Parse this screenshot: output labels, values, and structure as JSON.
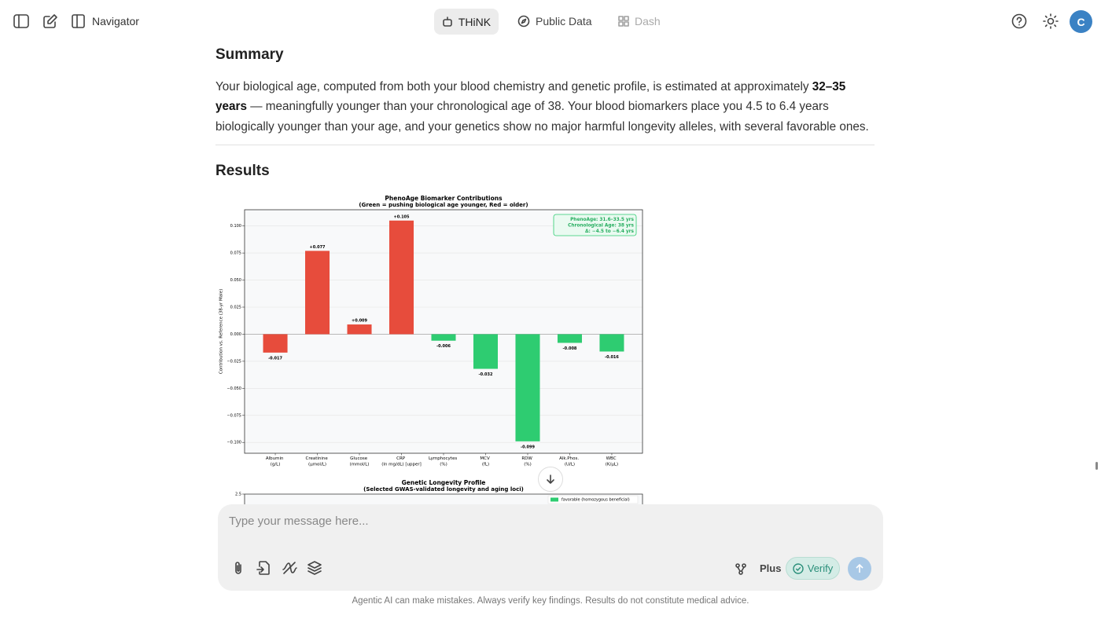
{
  "header": {
    "navigator": "Navigator",
    "tabs": [
      "THiNK",
      "Public Data",
      "Dash"
    ],
    "avatar": "C"
  },
  "summary": {
    "heading": "Summary",
    "text": [
      "Your biological age, computed from both your blood chemistry and genetic profile, is estimated at approximately ",
      "32–35 years",
      " — meaningfully younger than your chronological age of 38. Your blood biomarkers place you 4.5 to 6.4 years biologically younger than your age, and your genetics show no major harmful longevity alleles, with several favorable ones."
    ]
  },
  "results": {
    "heading": "Results"
  },
  "chart_data": [
    {
      "type": "bar",
      "title": "PhenoAge Biomarker Contributions",
      "subtitle": "(Green = pushing biological age younger, Red = older)",
      "ylabel": "Contribution vs. Reference (38-yr Male)",
      "categories": [
        "Albumin\n(g/L)",
        "Creatinine\n(µmol/L)",
        "Glucose\n(mmol/L)",
        "CRP\n(ln mg/dL) [upper]",
        "Lymphocytes\n(%)",
        "MCV\n(fL)",
        "RDW\n(%)",
        "Alk.Phos.\n(U/L)",
        "WBC\n(K/µL)"
      ],
      "values": [
        -0.017,
        0.077,
        0.009,
        0.105,
        -0.006,
        -0.032,
        -0.099,
        -0.008,
        -0.016
      ],
      "value_labels": [
        "-0.017",
        "+0.077",
        "+0.009",
        "+0.105",
        "-0.006",
        "-0.032",
        "-0.099",
        "-0.008",
        "-0.016"
      ],
      "colors": [
        "#e74c3c",
        "#e74c3c",
        "#e74c3c",
        "#e74c3c",
        "#2ecc71",
        "#2ecc71",
        "#2ecc71",
        "#2ecc71",
        "#2ecc71"
      ],
      "ylim": [
        -0.11,
        0.115
      ],
      "yticks": [
        {
          "value": -0.1,
          "label": "−0.100"
        },
        {
          "value": -0.075,
          "label": "−0.075"
        },
        {
          "value": -0.05,
          "label": "−0.050"
        },
        {
          "value": -0.025,
          "label": "−0.025"
        },
        {
          "value": 0,
          "label": "0.000"
        },
        {
          "value": 0.025,
          "label": "0.025"
        },
        {
          "value": 0.05,
          "label": "0.050"
        },
        {
          "value": 0.075,
          "label": "0.075"
        },
        {
          "value": 0.1,
          "label": "0.100"
        }
      ],
      "grid": true,
      "annotation": [
        "PhenoAge: 31.6–33.5 yrs",
        "Chronological Age: 38 yrs",
        "Δ: −4.5 to −6.4 yrs"
      ]
    },
    {
      "type": "bar",
      "title": "Genetic Longevity Profile",
      "subtitle": "(Selected GWAS-validated longevity and aging loci)",
      "yticks": [
        2.5
      ],
      "series": [
        {
          "name": "favorable (homozygous beneficial)",
          "color": "#2ecc71",
          "values": []
        }
      ]
    }
  ],
  "composer": {
    "placeholder": "Type your message here...",
    "plus": "Plus",
    "verify": "Verify"
  },
  "footer": "Agentic AI can make mistakes. Always verify key findings. Results do not constitute medical advice."
}
